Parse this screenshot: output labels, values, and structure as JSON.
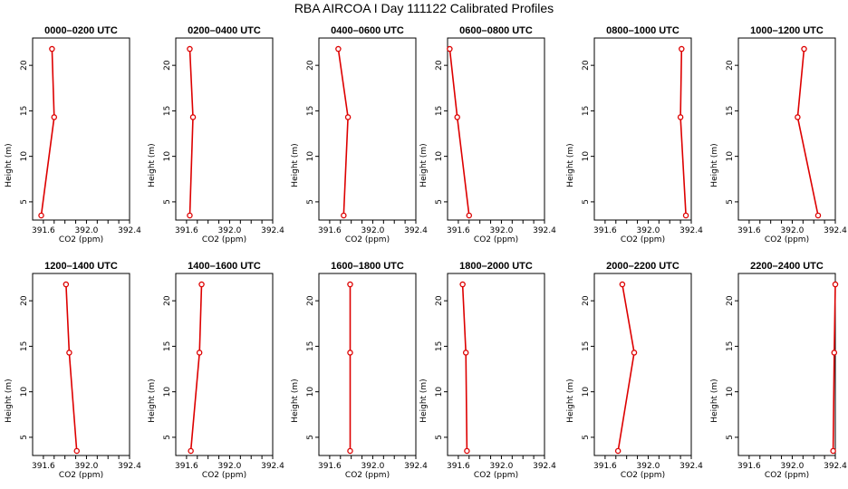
{
  "title": "RBA AIRCOA I  Day 111122  Calibrated Profiles",
  "colors": {
    "series": "#dd0000",
    "axis": "#000000",
    "background": "#ffffff"
  },
  "chart_data": [
    {
      "type": "line",
      "title": "0000–0200 UTC",
      "xlabel": "CO2 (ppm)",
      "ylabel": "Height (m)",
      "xlim": [
        391.5,
        392.4
      ],
      "ylim": [
        3.0,
        23.0
      ],
      "xticks": [
        "391.6",
        "392.0",
        "392.4"
      ],
      "yticks": [
        "5",
        "10",
        "15",
        "20"
      ],
      "x": [
        391.58,
        391.7,
        391.68
      ],
      "y": [
        3.5,
        14.3,
        21.8
      ]
    },
    {
      "type": "line",
      "title": "0200–0400 UTC",
      "xlabel": "CO2 (ppm)",
      "ylabel": "Height (m)",
      "xlim": [
        391.5,
        392.4
      ],
      "ylim": [
        3.0,
        23.0
      ],
      "xticks": [
        "391.6",
        "392.0",
        "392.4"
      ],
      "yticks": [
        "5",
        "10",
        "15",
        "20"
      ],
      "x": [
        391.63,
        391.66,
        391.63
      ],
      "y": [
        3.5,
        14.3,
        21.8
      ]
    },
    {
      "type": "line",
      "title": "0400–0600 UTC",
      "xlabel": "CO2 (ppm)",
      "ylabel": "Height (m)",
      "xlim": [
        391.5,
        392.4
      ],
      "ylim": [
        3.0,
        23.0
      ],
      "xticks": [
        "391.6",
        "392.0",
        "392.4"
      ],
      "yticks": [
        "5",
        "10",
        "15",
        "20"
      ],
      "x": [
        391.73,
        391.77,
        391.68
      ],
      "y": [
        3.5,
        14.3,
        21.8
      ]
    },
    {
      "type": "line",
      "title": "0600–0800 UTC",
      "xlabel": "CO2 (ppm)",
      "ylabel": "Height (m)",
      "xlim": [
        391.5,
        392.4
      ],
      "ylim": [
        3.0,
        23.0
      ],
      "xticks": [
        "391.6",
        "392.0",
        "392.4"
      ],
      "yticks": [
        "5",
        "10",
        "15",
        "20"
      ],
      "x": [
        391.7,
        391.59,
        391.52
      ],
      "y": [
        3.5,
        14.3,
        21.8
      ]
    },
    {
      "type": "line",
      "title": "0800–1000 UTC",
      "xlabel": "CO2 (ppm)",
      "ylabel": "Height (m)",
      "xlim": [
        391.5,
        392.4
      ],
      "ylim": [
        3.0,
        23.0
      ],
      "xticks": [
        "391.6",
        "392.0",
        "392.4"
      ],
      "yticks": [
        "5",
        "10",
        "15",
        "20"
      ],
      "x": [
        392.35,
        392.3,
        392.31
      ],
      "y": [
        3.5,
        14.3,
        21.8
      ]
    },
    {
      "type": "line",
      "title": "1000–1200 UTC",
      "xlabel": "CO2 (ppm)",
      "ylabel": "Height (m)",
      "xlim": [
        391.5,
        392.4
      ],
      "ylim": [
        3.0,
        23.0
      ],
      "xticks": [
        "391.6",
        "392.0",
        "392.4"
      ],
      "yticks": [
        "5",
        "10",
        "15",
        "20"
      ],
      "x": [
        392.24,
        392.05,
        392.11
      ],
      "y": [
        3.5,
        14.3,
        21.8
      ]
    },
    {
      "type": "line",
      "title": "1200–1400 UTC",
      "xlabel": "CO2 (ppm)",
      "ylabel": "Height (m)",
      "xlim": [
        391.5,
        392.4
      ],
      "ylim": [
        3.0,
        23.0
      ],
      "xticks": [
        "391.6",
        "392.0",
        "392.4"
      ],
      "yticks": [
        "5",
        "10",
        "15",
        "20"
      ],
      "x": [
        391.91,
        391.84,
        391.81
      ],
      "y": [
        3.5,
        14.3,
        21.8
      ]
    },
    {
      "type": "line",
      "title": "1400–1600 UTC",
      "xlabel": "CO2 (ppm)",
      "ylabel": "Height (m)",
      "xlim": [
        391.5,
        392.4
      ],
      "ylim": [
        3.0,
        23.0
      ],
      "xticks": [
        "391.6",
        "392.0",
        "392.4"
      ],
      "yticks": [
        "5",
        "10",
        "15",
        "20"
      ],
      "x": [
        391.64,
        391.72,
        391.74
      ],
      "y": [
        3.5,
        14.3,
        21.8
      ]
    },
    {
      "type": "line",
      "title": "1600–1800 UTC",
      "xlabel": "CO2 (ppm)",
      "ylabel": "Height (m)",
      "xlim": [
        391.5,
        392.4
      ],
      "ylim": [
        3.0,
        23.0
      ],
      "xticks": [
        "391.6",
        "392.0",
        "392.4"
      ],
      "yticks": [
        "5",
        "10",
        "15",
        "20"
      ],
      "x": [
        391.79,
        391.79,
        391.79
      ],
      "y": [
        3.5,
        14.3,
        21.8
      ]
    },
    {
      "type": "line",
      "title": "1800–2000 UTC",
      "xlabel": "CO2 (ppm)",
      "ylabel": "Height (m)",
      "xlim": [
        391.5,
        392.4
      ],
      "ylim": [
        3.0,
        23.0
      ],
      "xticks": [
        "391.6",
        "392.0",
        "392.4"
      ],
      "yticks": [
        "5",
        "10",
        "15",
        "20"
      ],
      "x": [
        391.68,
        391.67,
        391.64
      ],
      "y": [
        3.5,
        14.3,
        21.8
      ]
    },
    {
      "type": "line",
      "title": "2000–2200 UTC",
      "xlabel": "CO2 (ppm)",
      "ylabel": "Height (m)",
      "xlim": [
        391.5,
        392.4
      ],
      "ylim": [
        3.0,
        23.0
      ],
      "xticks": [
        "391.6",
        "392.0",
        "392.4"
      ],
      "yticks": [
        "5",
        "10",
        "15",
        "20"
      ],
      "x": [
        391.72,
        391.87,
        391.76
      ],
      "y": [
        3.5,
        14.3,
        21.8
      ]
    },
    {
      "type": "line",
      "title": "2200–2400 UTC",
      "xlabel": "CO2 (ppm)",
      "ylabel": "Height (m)",
      "xlim": [
        391.5,
        392.4
      ],
      "ylim": [
        3.0,
        23.0
      ],
      "xticks": [
        "391.6",
        "392.0",
        "392.4"
      ],
      "yticks": [
        "5",
        "10",
        "15",
        "20"
      ],
      "x": [
        392.38,
        392.39,
        392.4
      ],
      "y": [
        3.5,
        14.3,
        21.8
      ]
    }
  ]
}
